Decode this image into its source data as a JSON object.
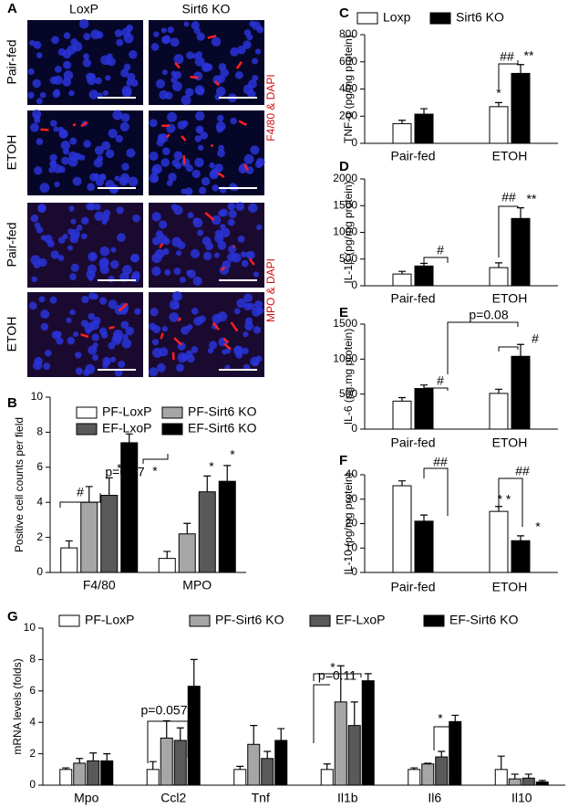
{
  "panel_a": {
    "label": "A",
    "columns": [
      "LoxP",
      "Sirt6 KO"
    ],
    "rows": [
      "Pair-fed",
      "ETOH",
      "Pair-fed",
      "ETOH"
    ],
    "stains": [
      "F4/80 & DAPI",
      "MPO & DAPI"
    ]
  },
  "chart_data": [
    {
      "type": "bar",
      "panel": "B",
      "ylabel": "Positive cell counts per field",
      "categories": [
        "F4/80",
        "MPO"
      ],
      "series": [
        {
          "name": "PF-LoxP",
          "color": "#ffffff",
          "values": [
            1.4,
            0.8
          ],
          "errors": [
            0.4,
            0.4
          ]
        },
        {
          "name": "PF-Sirt6 KO",
          "color": "#a6a6a6",
          "values": [
            4.0,
            2.2
          ],
          "errors": [
            0.9,
            0.6
          ]
        },
        {
          "name": "EF-LxoP",
          "color": "#595959",
          "values": [
            4.4,
            4.6
          ],
          "errors": [
            1.0,
            0.9
          ]
        },
        {
          "name": "EF-Sirt6 KO",
          "color": "#000000",
          "values": [
            7.4,
            5.2
          ],
          "errors": [
            0.5,
            0.9
          ]
        }
      ],
      "ylim": [
        0,
        10
      ],
      "yticks": [
        0,
        2,
        4,
        6,
        8,
        10
      ],
      "annotations": [
        "#",
        "p=0.07",
        "*",
        "*",
        "*",
        "*"
      ]
    },
    {
      "type": "bar",
      "panel": "C",
      "ylabel": "TNF-α (pg/mg protein)",
      "categories": [
        "Pair-fed",
        "ETOH"
      ],
      "series": [
        {
          "name": "Loxp",
          "color": "#ffffff",
          "values": [
            145,
            270
          ],
          "errors": [
            25,
            30
          ]
        },
        {
          "name": "Sirt6 KO",
          "color": "#000000",
          "values": [
            215,
            515
          ],
          "errors": [
            40,
            65
          ]
        }
      ],
      "ylim": [
        0,
        800
      ],
      "yticks": [
        0,
        200,
        400,
        600,
        800
      ],
      "annotations": [
        "*",
        "##",
        "**"
      ]
    },
    {
      "type": "bar",
      "panel": "D",
      "ylabel": "IL-1β (pg/mg protein)",
      "categories": [
        "Pair-fed",
        "ETOH"
      ],
      "series": [
        {
          "name": "Loxp",
          "color": "#ffffff",
          "values": [
            220,
            340
          ],
          "errors": [
            50,
            90
          ]
        },
        {
          "name": "Sirt6 KO",
          "color": "#000000",
          "values": [
            370,
            1260
          ],
          "errors": [
            50,
            200
          ]
        }
      ],
      "ylim": [
        0,
        2000
      ],
      "yticks": [
        0,
        500,
        1000,
        1500,
        2000
      ],
      "annotations": [
        "#",
        "##",
        "**"
      ]
    },
    {
      "type": "bar",
      "panel": "E",
      "ylabel": "IL-6 (pg.mg protein)",
      "categories": [
        "Pair-fed",
        "ETOH"
      ],
      "series": [
        {
          "name": "Loxp",
          "color": "#ffffff",
          "values": [
            400,
            510
          ],
          "errors": [
            50,
            60
          ]
        },
        {
          "name": "Sirt6 KO",
          "color": "#000000",
          "values": [
            580,
            1040
          ],
          "errors": [
            50,
            170
          ]
        }
      ],
      "ylim": [
        0,
        1500
      ],
      "yticks": [
        0,
        500,
        1000,
        1500
      ],
      "annotations": [
        "#",
        "#",
        "p=0.08"
      ]
    },
    {
      "type": "bar",
      "panel": "F",
      "ylabel": "IL-10 (pg/mg protein)",
      "categories": [
        "Pair-fed",
        "ETOH"
      ],
      "series": [
        {
          "name": "Loxp",
          "color": "#ffffff",
          "values": [
            35.5,
            25
          ],
          "errors": [
            2,
            2
          ]
        },
        {
          "name": "Sirt6 KO",
          "color": "#000000",
          "values": [
            21,
            13
          ],
          "errors": [
            2.5,
            2
          ]
        }
      ],
      "ylim": [
        0,
        40
      ],
      "yticks": [
        0,
        10,
        20,
        30,
        40
      ],
      "annotations": [
        "##",
        "##",
        "* *",
        "*"
      ]
    },
    {
      "type": "bar",
      "panel": "G",
      "ylabel": "mRNA levels (folds)",
      "categories": [
        "Mpo",
        "Ccl2",
        "Tnf",
        "Il1b",
        "Il6",
        "Il10"
      ],
      "series": [
        {
          "name": "PF-LoxP",
          "color": "#ffffff",
          "values": [
            1.0,
            1.0,
            1.0,
            1.0,
            1.0,
            1.0
          ],
          "errors": [
            0.1,
            0.5,
            0.2,
            0.35,
            0.1,
            0.85
          ]
        },
        {
          "name": "PF-Sirt6 KO",
          "color": "#a6a6a6",
          "values": [
            1.4,
            3.0,
            2.6,
            5.3,
            1.35,
            0.4
          ],
          "errors": [
            0.3,
            1.1,
            1.2,
            2.3,
            0.05,
            0.3
          ]
        },
        {
          "name": "EF-LxoP",
          "color": "#595959",
          "values": [
            1.55,
            2.85,
            1.7,
            3.8,
            1.8,
            0.45
          ],
          "errors": [
            0.5,
            0.8,
            0.45,
            1.5,
            0.35,
            0.25
          ]
        },
        {
          "name": "EF-Sirt6 KO",
          "color": "#000000",
          "values": [
            1.55,
            6.3,
            2.85,
            6.65,
            4.05,
            0.2
          ],
          "errors": [
            0.45,
            1.7,
            0.75,
            0.45,
            0.4,
            0.1
          ]
        }
      ],
      "ylim": [
        0,
        10
      ],
      "yticks": [
        0,
        2,
        4,
        6,
        8,
        10
      ],
      "annotations": [
        "p=0.057",
        "p=0.11",
        "*",
        "*"
      ]
    }
  ]
}
